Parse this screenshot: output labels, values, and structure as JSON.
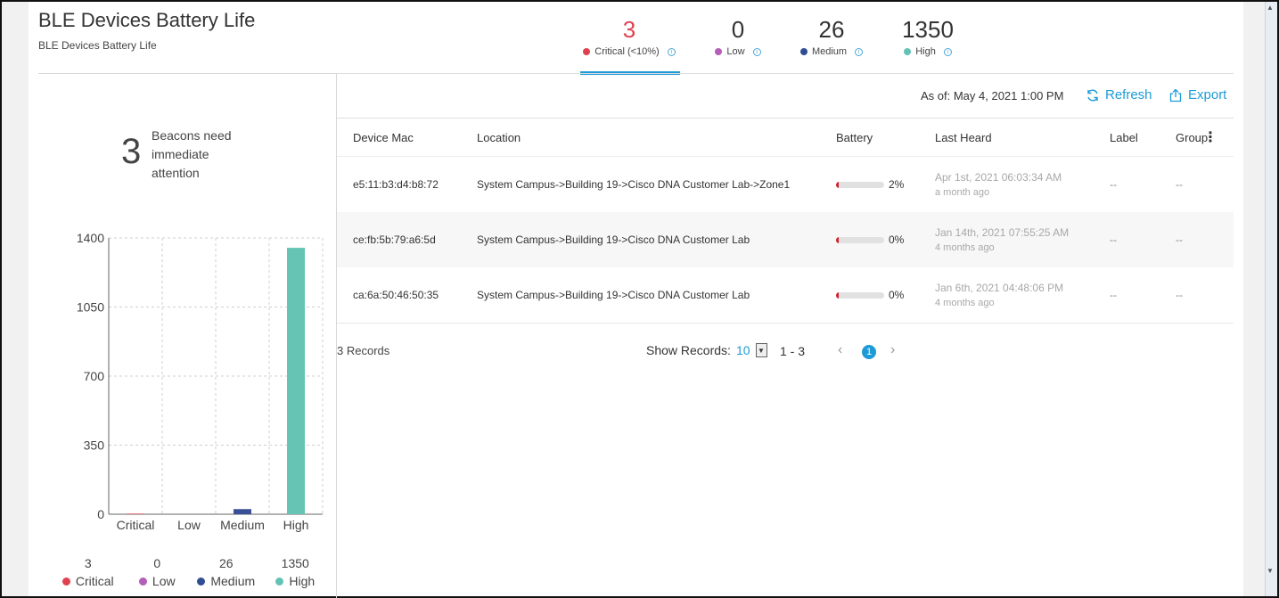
{
  "header": {
    "title": "BLE Devices Battery Life",
    "subtitle": "BLE Devices Battery Life"
  },
  "summary": [
    {
      "count": "3",
      "label": "Critical (<10%)",
      "color": "#e0414f",
      "count_color": "#e0414f"
    },
    {
      "count": "0",
      "label": "Low",
      "color": "#b35eb8",
      "count_color": "#333333"
    },
    {
      "count": "26",
      "label": "Medium",
      "color": "#2f4d92",
      "count_color": "#333333"
    },
    {
      "count": "1350",
      "label": "High",
      "color": "#62c3b4",
      "count_color": "#333333"
    }
  ],
  "attention": {
    "count": "3",
    "text": "Beacons need immediate attention"
  },
  "chart_data": {
    "type": "bar",
    "categories": [
      "Critical",
      "Low",
      "Medium",
      "High"
    ],
    "values": [
      3,
      0,
      26,
      1350
    ],
    "colors": [
      "#e0414f",
      "#b35eb8",
      "#3a4f96",
      "#66c4b5"
    ],
    "yticks": [
      0,
      350,
      700,
      1050,
      1400
    ],
    "ylim": [
      0,
      1400
    ],
    "grid": true,
    "title": "",
    "xlabel": "",
    "ylabel": ""
  },
  "legend": [
    {
      "value": "3",
      "name": "Critical",
      "color": "#e0414f"
    },
    {
      "value": "0",
      "name": "Low",
      "color": "#b35eb8"
    },
    {
      "value": "26",
      "name": "Medium",
      "color": "#2f4d92"
    },
    {
      "value": "1350",
      "name": "High",
      "color": "#62c3b4"
    }
  ],
  "toolbar": {
    "as_of": "As of: May 4, 2021 1:00 PM",
    "refresh_label": "Refresh",
    "export_label": "Export",
    "refresh_icon": "refresh-icon",
    "export_icon": "export-icon"
  },
  "table": {
    "columns": [
      "Device Mac",
      "Location",
      "Battery",
      "Last Heard",
      "Label",
      "Group"
    ],
    "rows": [
      {
        "mac": "e5:11:b3:d4:b8:72",
        "location": "System Campus->Building 19->Cisco DNA Customer Lab->Zone1",
        "battery": "2%",
        "battery_level": 0.02,
        "heard": "Apr 1st, 2021 06:03:34 AM",
        "heard_ago": "a month ago",
        "label": "--",
        "group": "--"
      },
      {
        "mac": "ce:fb:5b:79:a6:5d",
        "location": "System Campus->Building 19->Cisco DNA Customer Lab",
        "battery": "0%",
        "battery_level": 0.0,
        "heard": "Jan 14th, 2021 07:55:25 AM",
        "heard_ago": "4 months ago",
        "label": "--",
        "group": "--"
      },
      {
        "mac": "ca:6a:50:46:50:35",
        "location": "System Campus->Building 19->Cisco DNA Customer Lab",
        "battery": "0%",
        "battery_level": 0.0,
        "heard": "Jan 6th, 2021 04:48:06 PM",
        "heard_ago": "4 months ago",
        "label": "--",
        "group": "--"
      }
    ]
  },
  "pagination": {
    "records": "3 Records",
    "show_records_label": "Show Records:",
    "page_size": "10",
    "range": "1 - 3",
    "current_page": "1"
  }
}
